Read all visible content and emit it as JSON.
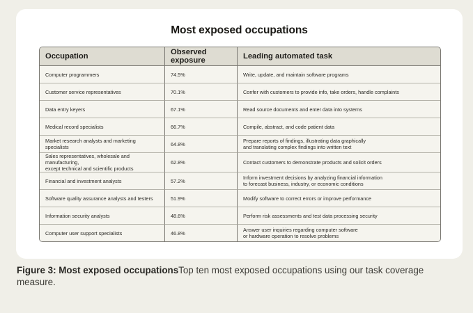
{
  "figure": {
    "title": "Most exposed occupations",
    "columns": [
      "Occupation",
      "Observed exposure",
      "Leading automated task"
    ],
    "rows": [
      {
        "occupation": "Computer programmers",
        "exposure": "74.5%",
        "task": "Write, update, and maintain software programs"
      },
      {
        "occupation": "Customer service representatives",
        "exposure": "70.1%",
        "task": "Confer with customers to provide info, take orders, handle complaints"
      },
      {
        "occupation": "Data entry keyers",
        "exposure": "67.1%",
        "task": "Read source documents and enter data into systems"
      },
      {
        "occupation": "Medical record specialists",
        "exposure": "66.7%",
        "task": "Compile, abstract, and code patient data"
      },
      {
        "occupation": "Market research analysts and marketing specialists",
        "exposure": "64.8%",
        "task": "Prepare reports of findings, illustrating data graphically\nand translating complex findings into written text"
      },
      {
        "occupation": "Sales representatives, wholesale and manufacturing,\nexcept technical and scientific products",
        "exposure": "62.8%",
        "task": "Contact customers to demonstrate products and solicit orders"
      },
      {
        "occupation": "Financial and investment analysts",
        "exposure": "57.2%",
        "task": "Inform investment decisions by analyzing financial information\nto forecast business, industry, or economic conditions"
      },
      {
        "occupation": "Software quality assurance analysts and testers",
        "exposure": "51.9%",
        "task": "Modify software to correct errors or improve performance"
      },
      {
        "occupation": "Information security analysts",
        "exposure": "48.6%",
        "task": "Perform risk assessments and test data processing security"
      },
      {
        "occupation": "Computer user support specialists",
        "exposure": "46.8%",
        "task": "Answer user inquiries regarding computer software\nor hardware operation to resolve problems"
      }
    ]
  },
  "caption": {
    "title": "Figure 3: Most exposed occupations",
    "text": "Top ten most exposed occupations using our task coverage measure."
  }
}
